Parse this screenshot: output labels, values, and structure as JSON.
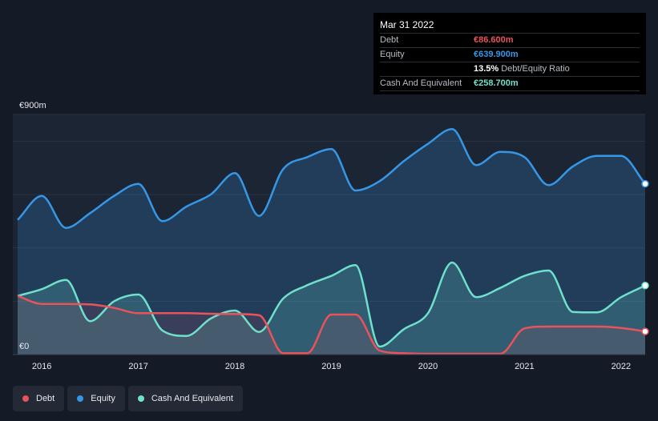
{
  "tooltip": {
    "date": "Mar 31 2022",
    "rows": [
      {
        "label": "Debt",
        "value": "€86.600m",
        "color": "#e8535c"
      },
      {
        "label": "Equity",
        "value": "€639.900m",
        "color": "#3597e6"
      },
      {
        "label": "",
        "value": "13.5%",
        "suffix": "Debt/Equity Ratio",
        "color": "#ffffff"
      },
      {
        "label": "Cash And Equivalent",
        "value": "€258.700m",
        "color": "#6fe0cc"
      }
    ]
  },
  "legend": [
    {
      "label": "Debt",
      "color": "#e8535c"
    },
    {
      "label": "Equity",
      "color": "#3597e6"
    },
    {
      "label": "Cash And Equivalent",
      "color": "#6fe0cc"
    }
  ],
  "chart_data": {
    "type": "area",
    "ylim": [
      0,
      900
    ],
    "xlim": [
      2015.7,
      2022.25
    ],
    "y_labels": {
      "top": "€900m",
      "bottom": "€0"
    },
    "x_ticks": [
      {
        "value": 2016,
        "label": "2016"
      },
      {
        "value": 2017,
        "label": "2017"
      },
      {
        "value": 2018,
        "label": "2018"
      },
      {
        "value": 2019,
        "label": "2019"
      },
      {
        "value": 2020,
        "label": "2020"
      },
      {
        "value": 2021,
        "label": "2021"
      },
      {
        "value": 2022,
        "label": "2022"
      }
    ],
    "series": [
      {
        "name": "Equity",
        "color": "#3597e6",
        "x": [
          2015.75,
          2016.0,
          2016.25,
          2016.5,
          2016.75,
          2017.0,
          2017.25,
          2017.5,
          2017.75,
          2018.0,
          2018.25,
          2018.5,
          2018.75,
          2019.0,
          2019.25,
          2019.5,
          2019.75,
          2020.0,
          2020.25,
          2020.5,
          2020.75,
          2021.0,
          2021.25,
          2021.5,
          2021.75,
          2022.0,
          2022.25
        ],
        "values": [
          505,
          595,
          475,
          530,
          595,
          640,
          500,
          555,
          600,
          680,
          520,
          695,
          740,
          770,
          615,
          650,
          725,
          790,
          845,
          710,
          760,
          740,
          635,
          705,
          745,
          745,
          640
        ]
      },
      {
        "name": "Cash And Equivalent",
        "color": "#6fe0cc",
        "x": [
          2015.75,
          2016.0,
          2016.25,
          2016.5,
          2016.75,
          2017.0,
          2017.25,
          2017.5,
          2017.75,
          2018.0,
          2018.25,
          2018.5,
          2018.75,
          2019.0,
          2019.25,
          2019.5,
          2019.75,
          2020.0,
          2020.25,
          2020.5,
          2020.75,
          2021.0,
          2021.25,
          2021.5,
          2021.75,
          2022.0,
          2022.25
        ],
        "values": [
          220,
          245,
          280,
          125,
          200,
          225,
          90,
          70,
          135,
          165,
          85,
          210,
          260,
          295,
          335,
          30,
          95,
          155,
          345,
          215,
          250,
          295,
          315,
          160,
          158,
          215,
          258.7
        ]
      },
      {
        "name": "Debt",
        "color": "#e8535c",
        "x": [
          2015.75,
          2016.0,
          2016.25,
          2016.5,
          2016.75,
          2017.0,
          2017.25,
          2017.5,
          2017.75,
          2018.0,
          2018.25,
          2018.5,
          2018.75,
          2019.0,
          2019.25,
          2019.5,
          2019.75,
          2020.0,
          2020.25,
          2020.5,
          2020.75,
          2021.0,
          2021.25,
          2021.5,
          2021.75,
          2022.0,
          2022.25
        ],
        "values": [
          220,
          190,
          190,
          188,
          175,
          155,
          155,
          155,
          153,
          152,
          148,
          5,
          5,
          150,
          150,
          15,
          5,
          3,
          3,
          3,
          3,
          98,
          105,
          105,
          105,
          100,
          86.6
        ]
      }
    ]
  }
}
